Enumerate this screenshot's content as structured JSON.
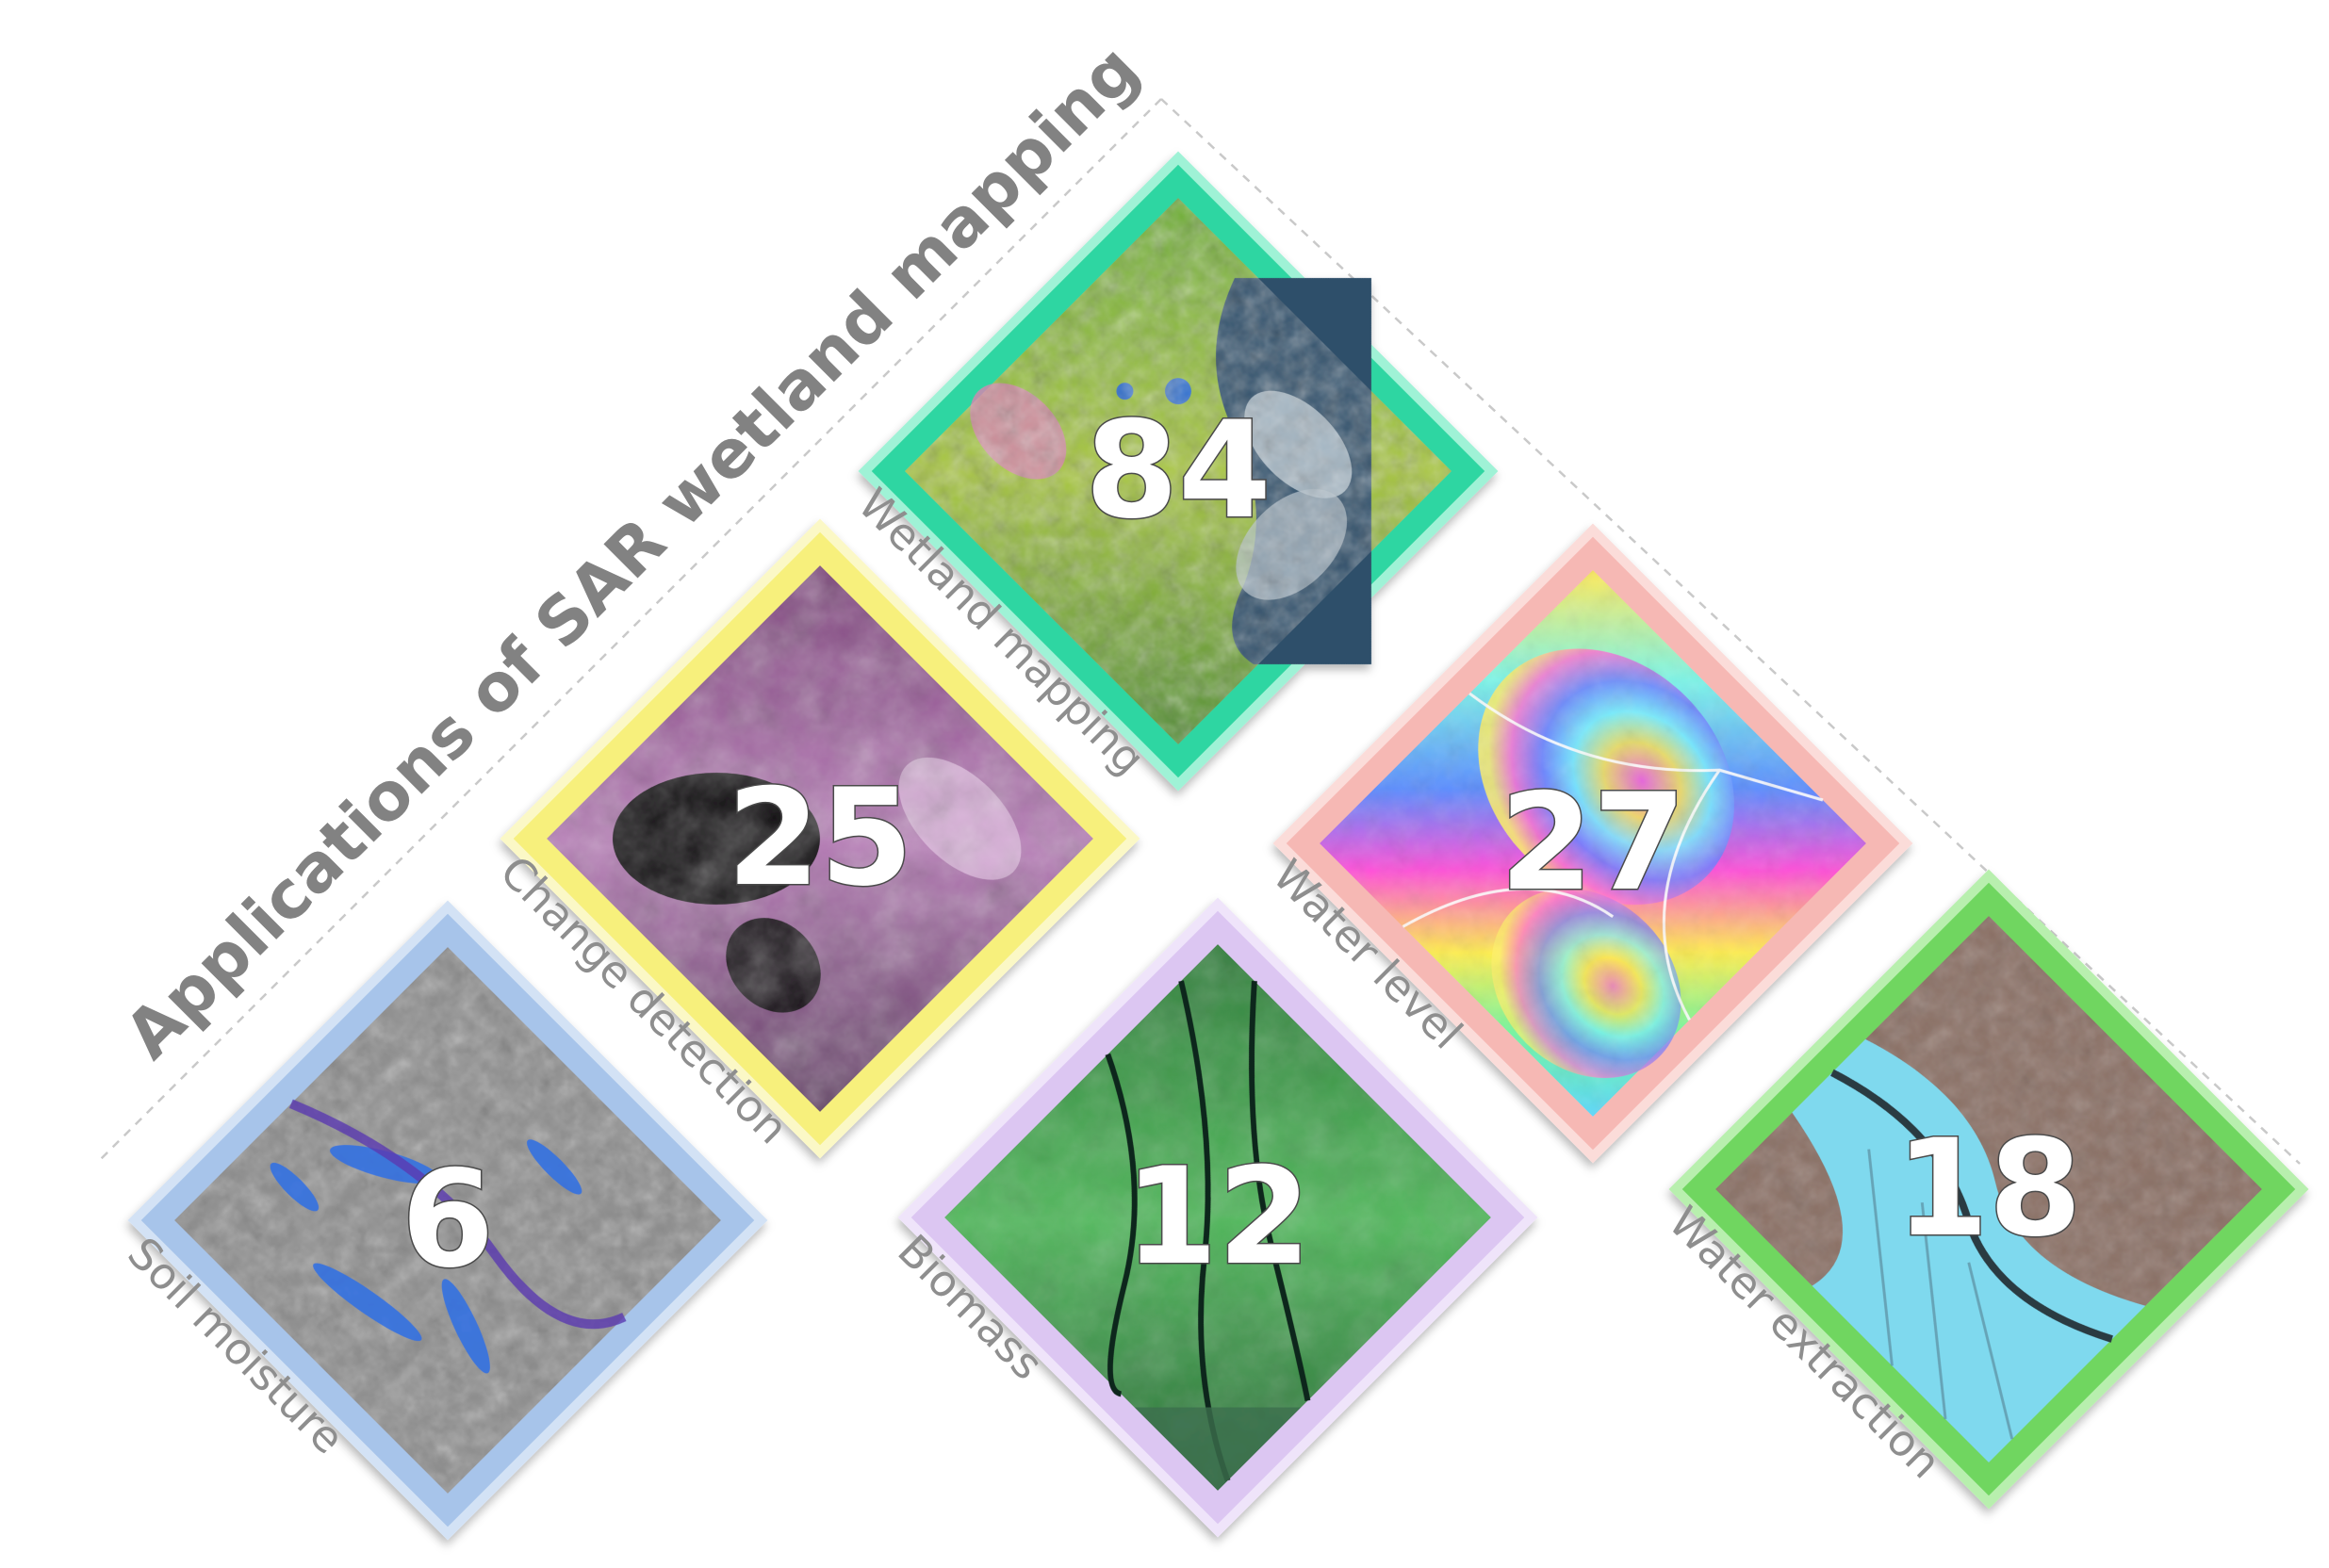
{
  "diagram": {
    "title": "Applications of SAR wetland mapping",
    "tiles": [
      {
        "id": "wetland-mapping",
        "label": "Wetland mapping",
        "count": "84",
        "frame_color": "#2fd6a2",
        "frame_light": "#9ff2d6",
        "imagery": "satellite-wetland-green-blue"
      },
      {
        "id": "change-detection",
        "label": "Change detection",
        "count": "25",
        "frame_color": "#f7f07c",
        "frame_light": "#fbf8c6",
        "imagery": "sar-magenta-dark-lake"
      },
      {
        "id": "water-level",
        "label": "Water level",
        "count": "27",
        "frame_color": "#f6b8b4",
        "frame_light": "#fbdcd9",
        "imagery": "interferogram-rainbow-fringes"
      },
      {
        "id": "soil-moisture",
        "label": "Soil moisture",
        "count": "6",
        "frame_color": "#a7c4ea",
        "frame_light": "#d3e2f5",
        "imagery": "grey-terrain-blue-water"
      },
      {
        "id": "biomass",
        "label": "Biomass",
        "count": "12",
        "frame_color": "#dcc6f2",
        "frame_light": "#efe4fa",
        "imagery": "green-river-delta"
      },
      {
        "id": "water-extraction",
        "label": "Water extraction",
        "count": "18",
        "frame_color": "#6fd660",
        "frame_light": "#b8efae",
        "imagery": "cyan-water-brown-fields"
      }
    ]
  }
}
